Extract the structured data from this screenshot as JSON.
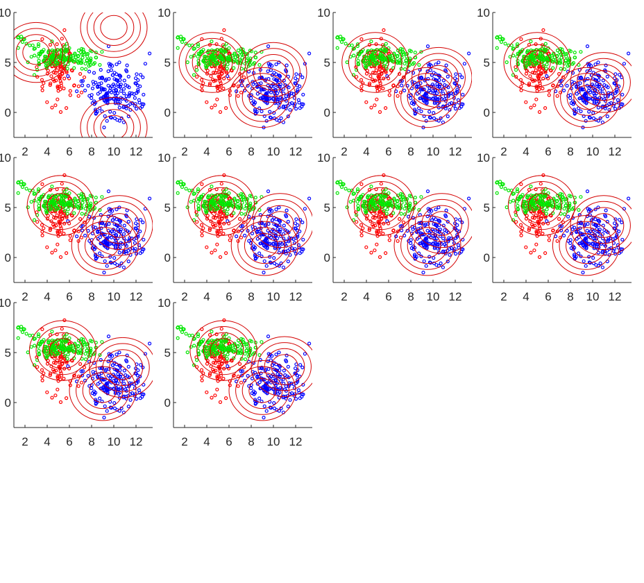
{
  "figure": {
    "title": "",
    "colors": {
      "cluster_1": "#ff0000",
      "cluster_2": "#00e600",
      "cluster_3": "#0000ff",
      "contour": "#d40000",
      "axis": "#262626"
    }
  },
  "chart_data": {
    "type": "scatter",
    "layout": "grid of small multiples (3 rows x 4 columns, 10 panels)",
    "title": "",
    "xlabel": "",
    "ylabel": "",
    "xlim": [
      1,
      13.5
    ],
    "ylim": [
      -2.5,
      10
    ],
    "xticks": [
      2,
      4,
      6,
      8,
      10,
      12
    ],
    "xtick_labels": [
      "2",
      "4",
      "6",
      "8",
      "10",
      "12"
    ],
    "yticks": [
      0,
      5,
      10
    ],
    "ytick_labels": [
      "0",
      "5",
      "10"
    ],
    "grid": false,
    "legend": "none",
    "contour_radii": [
      1.2,
      1.8,
      2.4,
      3.0
    ],
    "clusters": [
      {
        "color": "red",
        "center": [
          5.0,
          3.8
        ],
        "spread": [
          0.9,
          1.8
        ],
        "count": 110
      },
      {
        "color": "green",
        "center": [
          5.8,
          5.4
        ],
        "spread": [
          1.5,
          0.55
        ],
        "count": 150
      },
      {
        "color": "blue",
        "center": [
          10.0,
          2.0
        ],
        "spread": [
          1.3,
          1.4
        ],
        "count": 190
      }
    ],
    "panels": [
      {
        "means": [
          [
            3.0,
            6.0
          ],
          [
            10.0,
            8.5
          ],
          [
            10.0,
            -1.5
          ]
        ]
      },
      {
        "means": [
          [
            4.5,
            5.0
          ],
          [
            10.0,
            4.0
          ],
          [
            9.0,
            1.5
          ]
        ]
      },
      {
        "means": [
          [
            4.8,
            5.0
          ],
          [
            10.5,
            3.5
          ],
          [
            9.5,
            1.5
          ]
        ]
      },
      {
        "means": [
          [
            5.0,
            5.0
          ],
          [
            11.0,
            3.0
          ],
          [
            9.5,
            1.5
          ]
        ]
      },
      {
        "means": [
          [
            5.2,
            5.2
          ],
          [
            10.5,
            3.2
          ],
          [
            9.2,
            1.2
          ]
        ]
      },
      {
        "means": [
          [
            5.3,
            5.2
          ],
          [
            10.6,
            3.4
          ],
          [
            9.2,
            1.2
          ]
        ]
      },
      {
        "means": [
          [
            5.3,
            5.2
          ],
          [
            10.8,
            3.4
          ],
          [
            9.5,
            1.2
          ]
        ]
      },
      {
        "means": [
          [
            5.4,
            5.2
          ],
          [
            11.0,
            3.2
          ],
          [
            9.4,
            1.2
          ]
        ]
      },
      {
        "means": [
          [
            5.4,
            5.2
          ],
          [
            10.8,
            3.5
          ],
          [
            9.0,
            1.2
          ]
        ]
      },
      {
        "means": [
          [
            5.5,
            5.2
          ],
          [
            11.0,
            3.6
          ],
          [
            9.0,
            1.2
          ]
        ]
      }
    ]
  }
}
